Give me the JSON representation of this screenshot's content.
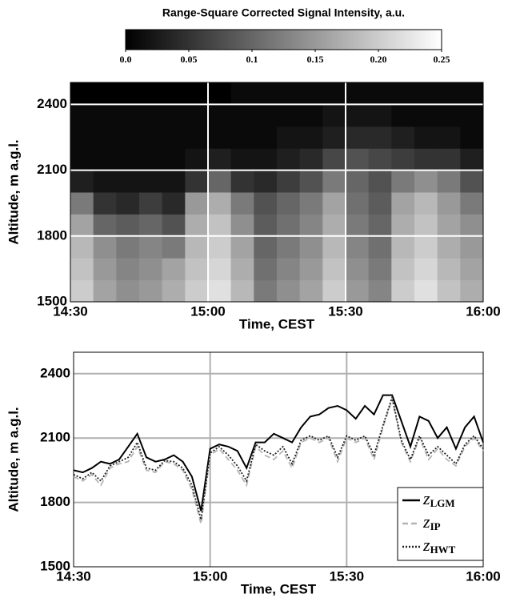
{
  "chart_data": [
    {
      "type": "heatmap",
      "title": "Range-Square Corrected Signal Intensity, a.u.",
      "xlabel": "Time, CEST",
      "ylabel": "Altitude, m a.g.l.",
      "xlim": [
        870,
        960
      ],
      "ylim": [
        1500,
        2500
      ],
      "xticks": [
        {
          "value": 870,
          "label": "14:30"
        },
        {
          "value": 900,
          "label": "15:00"
        },
        {
          "value": 930,
          "label": "15:30"
        },
        {
          "value": 960,
          "label": "16:00"
        }
      ],
      "yticks": [
        1500,
        1800,
        2100,
        2400
      ],
      "grid": true,
      "grid_color": "#ffffff",
      "clim": [
        0,
        0.25
      ],
      "cticks": [
        {
          "value": 0,
          "label": "0.0"
        },
        0.05,
        0.1,
        0.15,
        {
          "value": 0.2,
          "label": "0.20"
        },
        0.25
      ],
      "x": [
        872.5,
        877.5,
        882.5,
        887.5,
        892.5,
        897.5,
        902.5,
        907.5,
        912.5,
        917.5,
        922.5,
        927.5,
        932.5,
        937.5,
        942.5,
        947.5,
        952.5,
        957.5
      ],
      "y": [
        1550,
        1650,
        1750,
        1850,
        1950,
        2050,
        2150,
        2250,
        2350,
        2450
      ],
      "values": [
        [
          0.2,
          0.16,
          0.14,
          0.15,
          0.17,
          0.2,
          0.22,
          0.18,
          0.12,
          0.14,
          0.16,
          0.2,
          0.15,
          0.13,
          0.2,
          0.22,
          0.19,
          0.17
        ],
        [
          0.19,
          0.15,
          0.13,
          0.14,
          0.16,
          0.19,
          0.21,
          0.17,
          0.11,
          0.13,
          0.15,
          0.19,
          0.14,
          0.12,
          0.19,
          0.21,
          0.18,
          0.16
        ],
        [
          0.18,
          0.14,
          0.12,
          0.13,
          0.12,
          0.18,
          0.2,
          0.16,
          0.1,
          0.12,
          0.14,
          0.18,
          0.13,
          0.11,
          0.18,
          0.2,
          0.17,
          0.15
        ],
        [
          0.16,
          0.1,
          0.09,
          0.1,
          0.08,
          0.17,
          0.19,
          0.14,
          0.09,
          0.11,
          0.13,
          0.17,
          0.12,
          0.1,
          0.17,
          0.19,
          0.16,
          0.14
        ],
        [
          0.12,
          0.05,
          0.04,
          0.06,
          0.04,
          0.15,
          0.17,
          0.12,
          0.08,
          0.1,
          0.12,
          0.16,
          0.11,
          0.09,
          0.16,
          0.18,
          0.15,
          0.12
        ],
        [
          0.03,
          0.02,
          0.02,
          0.02,
          0.02,
          0.05,
          0.1,
          0.05,
          0.04,
          0.06,
          0.08,
          0.12,
          0.1,
          0.08,
          0.12,
          0.14,
          0.12,
          0.08
        ],
        [
          0.01,
          0.01,
          0.01,
          0.01,
          0.01,
          0.02,
          0.03,
          0.02,
          0.02,
          0.03,
          0.04,
          0.07,
          0.08,
          0.07,
          0.06,
          0.05,
          0.05,
          0.03
        ],
        [
          0.01,
          0.01,
          0.01,
          0.01,
          0.01,
          0.01,
          0.01,
          0.01,
          0.01,
          0.02,
          0.02,
          0.03,
          0.04,
          0.04,
          0.03,
          0.02,
          0.02,
          0.01
        ],
        [
          0.01,
          0.01,
          0.01,
          0.01,
          0.01,
          0.01,
          0.01,
          0.01,
          0.01,
          0.01,
          0.01,
          0.02,
          0.02,
          0.02,
          0.01,
          0.01,
          0.01,
          0.01
        ],
        [
          0.0,
          0.0,
          0.0,
          0.0,
          0.0,
          0.0,
          0.0,
          0.01,
          0.01,
          0.01,
          0.01,
          0.01,
          0.01,
          0.01,
          0.01,
          0.01,
          0.01,
          0.01
        ]
      ]
    },
    {
      "type": "line",
      "xlabel": "Time, CEST",
      "ylabel": "Altitude, m a.g.l.",
      "xlim": [
        870,
        960
      ],
      "ylim": [
        1500,
        2500
      ],
      "xticks": [
        {
          "value": 870,
          "label": "14:30"
        },
        {
          "value": 900,
          "label": "15:00"
        },
        {
          "value": 930,
          "label": "15:30"
        },
        {
          "value": 960,
          "label": "16:00"
        }
      ],
      "yticks": [
        1500,
        1800,
        2100,
        2400
      ],
      "grid": true,
      "grid_color": "#b0b0b0",
      "legend": "lower right",
      "legend_symbol": "z",
      "x": [
        870,
        872,
        874,
        876,
        878,
        880,
        882,
        884,
        886,
        888,
        890,
        892,
        894,
        896,
        898,
        900,
        902,
        904,
        906,
        908,
        910,
        912,
        914,
        916,
        918,
        920,
        922,
        924,
        926,
        928,
        930,
        932,
        934,
        936,
        938,
        940,
        942,
        944,
        946,
        948,
        950,
        952,
        954,
        956,
        958,
        960
      ],
      "series": [
        {
          "name": "LGM",
          "color": "#000000",
          "style": "solid",
          "values": [
            1950,
            1940,
            1960,
            1990,
            1980,
            2000,
            2060,
            2120,
            2010,
            1990,
            2000,
            2020,
            1990,
            1920,
            1760,
            2050,
            2070,
            2060,
            2040,
            1960,
            2080,
            2080,
            2120,
            2100,
            2080,
            2150,
            2200,
            2210,
            2240,
            2250,
            2230,
            2190,
            2250,
            2210,
            2300,
            2300,
            2180,
            2060,
            2200,
            2180,
            2100,
            2150,
            2050,
            2150,
            2200,
            2080
          ]
        },
        {
          "name": "IP",
          "color": "#b4b4b4",
          "style": "dashed",
          "values": [
            1920,
            1900,
            1930,
            1880,
            1960,
            1980,
            1990,
            2060,
            1950,
            1940,
            1990,
            1980,
            1950,
            1860,
            1700,
            2020,
            2050,
            2000,
            1950,
            1880,
            2060,
            2020,
            2000,
            2040,
            1960,
            2080,
            2100,
            2080,
            2100,
            1990,
            2100,
            2080,
            2100,
            2000,
            2150,
            2280,
            2080,
            1990,
            2100,
            2000,
            2050,
            2000,
            1970,
            2060,
            2100,
            2040
          ]
        },
        {
          "name": "HWT",
          "color": "#222222",
          "style": "dotted",
          "values": [
            1930,
            1910,
            1940,
            1900,
            1970,
            1990,
            2010,
            2080,
            1960,
            1950,
            1995,
            1990,
            1960,
            1880,
            1720,
            2030,
            2060,
            2020,
            1970,
            1900,
            2070,
            2040,
            2020,
            2060,
            1980,
            2090,
            2110,
            2090,
            2110,
            2010,
            2110,
            2090,
            2110,
            2020,
            2160,
            2290,
            2090,
            2000,
            2110,
            2020,
            2060,
            2020,
            1980,
            2070,
            2110,
            2050
          ]
        }
      ]
    }
  ]
}
